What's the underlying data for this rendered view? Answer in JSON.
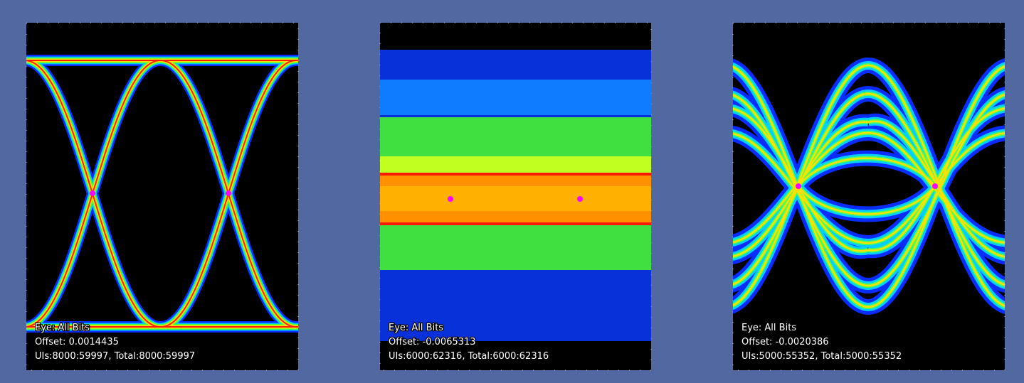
{
  "panels": [
    {
      "lines": [
        "Eye: All Bits",
        "Offset: 0.0014435",
        "UIs:8000:59997, Total:8000:59997"
      ]
    },
    {
      "lines": [
        "Eye: All Bits",
        "Offset: -0.0065313",
        "UIs:6000:62316, Total:6000:62316"
      ]
    },
    {
      "lines": [
        "Eye: All Bits",
        "Offset: -0.0020386",
        "UIs:5000:55352, Total:5000:55352"
      ]
    }
  ]
}
